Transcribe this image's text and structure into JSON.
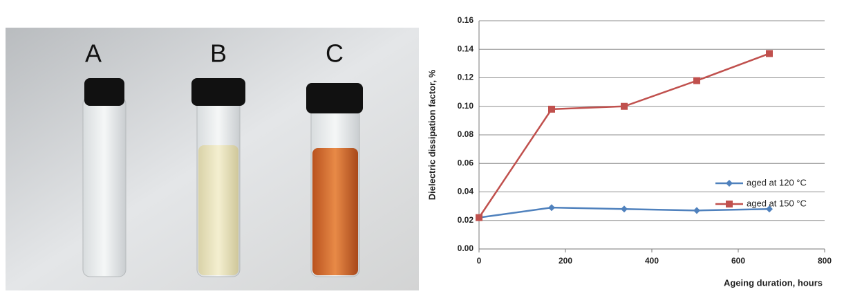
{
  "photo": {
    "labels": [
      "A",
      "B",
      "C"
    ]
  },
  "chart_data": {
    "type": "line",
    "x_label": "Ageing duration, hours",
    "y_label": "Dielectric dissipation factor, %",
    "x": [
      0,
      168,
      336,
      504,
      672
    ],
    "series": [
      {
        "name": "aged at 120 °C",
        "color": "#4f81bd",
        "marker": "diamond",
        "values": [
          0.022,
          0.029,
          0.028,
          0.027,
          0.028
        ]
      },
      {
        "name": "aged at 150 °C",
        "color": "#c0504d",
        "marker": "square",
        "values": [
          0.022,
          0.098,
          0.1,
          0.118,
          0.137
        ]
      }
    ],
    "xlim": [
      0,
      800
    ],
    "xticks": [
      0,
      200,
      400,
      600,
      800
    ],
    "ylim": [
      0,
      0.16
    ],
    "yticks": [
      {
        "value": 0,
        "label": "0.00"
      },
      0.02,
      0.04,
      0.06,
      0.08,
      {
        "value": 0.1,
        "label": "0.10"
      },
      0.12,
      0.14,
      0.16
    ],
    "grid": true
  }
}
